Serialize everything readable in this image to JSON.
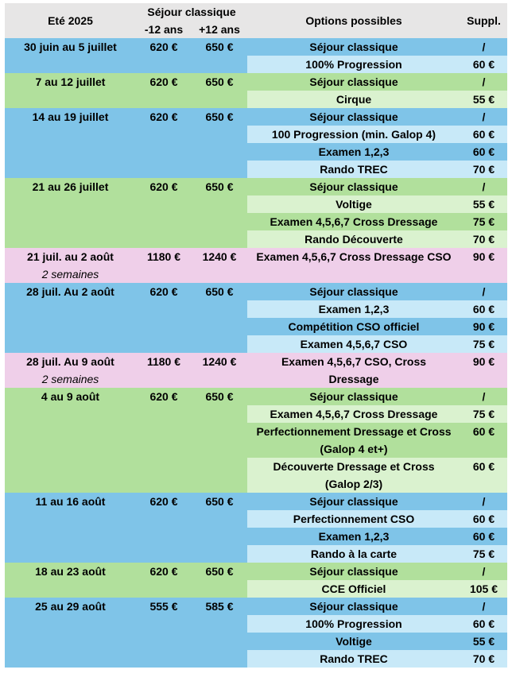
{
  "header": {
    "period": "Eté 2025",
    "sejour_classique": "Séjour classique",
    "under12": "-12 ans",
    "over12": "+12 ans",
    "options": "Options possibles",
    "suppl": "Suppl."
  },
  "periods": [
    {
      "dates": "30 juin au 5 juillet",
      "subtitle": "",
      "price_under12": "620 €",
      "price_over12": "650 €",
      "theme": "blue",
      "options": [
        {
          "label": "Séjour classique",
          "suppl": "/"
        },
        {
          "label": "100% Progression",
          "suppl": "60 €"
        }
      ]
    },
    {
      "dates": "7 au 12 juillet",
      "subtitle": "",
      "price_under12": "620 €",
      "price_over12": "650 €",
      "theme": "green",
      "options": [
        {
          "label": "Séjour classique",
          "suppl": "/"
        },
        {
          "label": "Cirque",
          "suppl": "55 €"
        }
      ]
    },
    {
      "dates": "14 au 19 juillet",
      "subtitle": "",
      "price_under12": "620 €",
      "price_over12": "650 €",
      "theme": "blue",
      "options": [
        {
          "label": "Séjour classique",
          "suppl": "/"
        },
        {
          "label": "100 Progression (min. Galop 4)",
          "suppl": "60 €"
        },
        {
          "label": "Examen 1,2,3",
          "suppl": "60 €"
        },
        {
          "label": "Rando TREC",
          "suppl": "70 €"
        }
      ]
    },
    {
      "dates": "21 au 26 juillet",
      "subtitle": "",
      "price_under12": "620 €",
      "price_over12": "650 €",
      "theme": "green",
      "options": [
        {
          "label": "Séjour classique",
          "suppl": "/"
        },
        {
          "label": "Voltige",
          "suppl": "55 €"
        },
        {
          "label": "Examen 4,5,6,7 Cross Dressage",
          "suppl": "75 €"
        },
        {
          "label": "Rando Découverte",
          "suppl": "70 €"
        }
      ]
    },
    {
      "dates": "21 juil. au 2 août",
      "subtitle": "2 semaines",
      "price_under12": "1180 €",
      "price_over12": "1240 €",
      "theme": "pink",
      "options": [
        {
          "label": "Examen 4,5,6,7 Cross Dressage CSO",
          "suppl": "90 €",
          "lines": 2
        }
      ]
    },
    {
      "dates": "28 juil. Au 2 août",
      "subtitle": "",
      "price_under12": "620 €",
      "price_over12": "650 €",
      "theme": "blue",
      "options": [
        {
          "label": "Séjour classique",
          "suppl": "/"
        },
        {
          "label": "Examen 1,2,3",
          "suppl": "60 €"
        },
        {
          "label": "Compétition CSO officiel",
          "suppl": "90 €"
        },
        {
          "label": "Examen 4,5,6,7 CSO",
          "suppl": "75 €"
        }
      ]
    },
    {
      "dates": "28 juil. Au 9 août",
      "subtitle": "2 semaines",
      "price_under12": "1180 €",
      "price_over12": "1240 €",
      "theme": "pink",
      "options": [
        {
          "label": "Examen 4,5,6,7 CSO, Cross Dressage",
          "suppl": "90 €",
          "lines": 2
        }
      ]
    },
    {
      "dates": "4 au 9 août",
      "subtitle": "",
      "price_under12": "620 €",
      "price_over12": "650 €",
      "theme": "green",
      "options": [
        {
          "label": "Séjour classique",
          "suppl": "/"
        },
        {
          "label": "Examen 4,5,6,7 Cross Dressage",
          "suppl": "75 €"
        },
        {
          "label": "Perfectionnement Dressage et Cross (Galop 4 et+)",
          "suppl": "60 €",
          "lines": 2
        },
        {
          "label": "Découverte Dressage et Cross (Galop 2/3)",
          "suppl": "60 €",
          "lines": 2
        }
      ]
    },
    {
      "dates": "11 au 16 août",
      "subtitle": "",
      "price_under12": "620 €",
      "price_over12": "650 €",
      "theme": "blue",
      "options": [
        {
          "label": "Séjour classique",
          "suppl": "/"
        },
        {
          "label": "Perfectionnement CSO",
          "suppl": "60 €"
        },
        {
          "label": "Examen 1,2,3",
          "suppl": "60 €"
        },
        {
          "label": "Rando à la carte",
          "suppl": "75 €"
        }
      ]
    },
    {
      "dates": "18 au 23 août",
      "subtitle": "",
      "price_under12": "620 €",
      "price_over12": "650 €",
      "theme": "green",
      "options": [
        {
          "label": "Séjour classique",
          "suppl": "/"
        },
        {
          "label": "CCE Officiel",
          "suppl": "105 €"
        }
      ]
    },
    {
      "dates": "25 au 29 août",
      "subtitle": "",
      "price_under12": "555 €",
      "price_over12": "585 €",
      "theme": "blue",
      "options": [
        {
          "label": "Séjour classique",
          "suppl": "/"
        },
        {
          "label": "100% Progression",
          "suppl": "60 €"
        },
        {
          "label": "Voltige",
          "suppl": "55 €"
        },
        {
          "label": "Rando TREC",
          "suppl": "70 €"
        }
      ]
    }
  ]
}
